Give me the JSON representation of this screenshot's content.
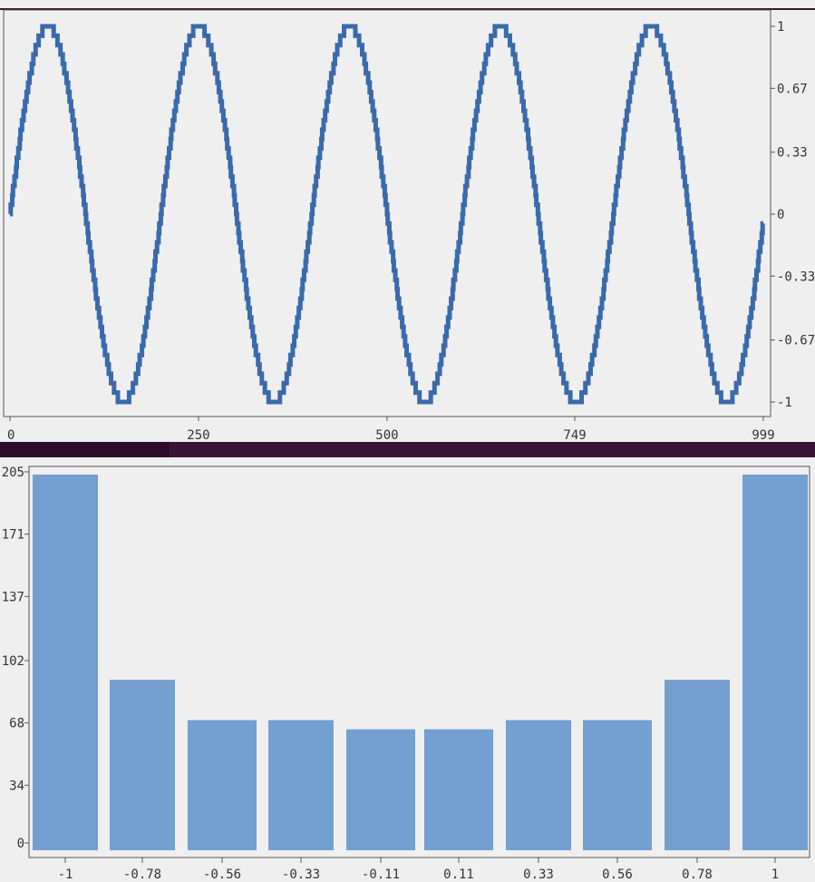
{
  "colors": {
    "background": "#efefef",
    "line": "#3a6aaa",
    "bar": "#749fd1",
    "axis": "#555555",
    "divider": "#3b1435"
  },
  "chart_data": [
    {
      "type": "line",
      "title": "",
      "xlabel": "",
      "ylabel": "",
      "x_ticks": [
        0,
        250,
        500,
        749,
        999
      ],
      "x_tick_labels": [
        "0",
        "250",
        "500",
        "749",
        "999"
      ],
      "y_ticks": [
        1,
        0.67,
        0.33,
        0,
        -0.33,
        -0.67,
        -1
      ],
      "y_tick_labels": [
        "1",
        "0.67",
        "0.33",
        "0",
        "-0.33",
        "-0.67",
        "-1"
      ],
      "xlim": [
        0,
        999
      ],
      "ylim": [
        -1,
        1
      ],
      "y_axis_side": "right",
      "series": [
        {
          "function": "sin",
          "x_start": 0,
          "x_end": 999,
          "cycles": 5,
          "amplitude": 1,
          "quantization_levels": 41
        }
      ],
      "grid": false
    },
    {
      "type": "bar",
      "title": "",
      "xlabel": "",
      "ylabel": "",
      "categories": [
        "-1",
        "-0.78",
        "-0.56",
        "-0.33",
        "-0.11",
        "0.11",
        "0.33",
        "0.56",
        "0.78",
        "1"
      ],
      "values": [
        205,
        93,
        71,
        71,
        66,
        66,
        71,
        71,
        93,
        205
      ],
      "y_ticks": [
        0,
        34,
        68,
        102,
        137,
        171,
        205
      ],
      "y_tick_labels": [
        "0",
        "34",
        "68",
        "102",
        "137",
        "171",
        "205"
      ],
      "ylim": [
        0,
        205
      ],
      "y_axis_side": "left",
      "grid": false
    }
  ]
}
